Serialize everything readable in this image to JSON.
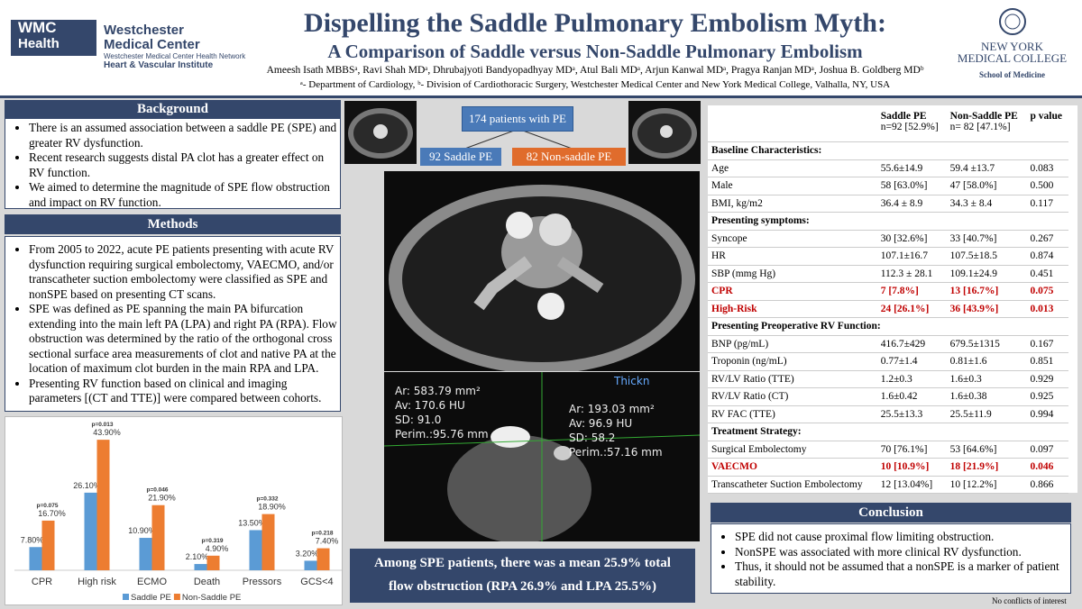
{
  "header": {
    "logo_top": "WMC",
    "logo_bottom": "Health",
    "org": "Westchester Medical Center",
    "network": "Westchester Medical Center Health Network",
    "institute": "Heart & Vascular Institute",
    "title": "Dispelling the Saddle Pulmonary Embolism Myth:",
    "subtitle": "A Comparison of Saddle versus Non-Saddle Pulmonary Embolism",
    "authors": "Ameesh Isath MBBSᵃ, Ravi Shah MDᵃ, Dhrubajyoti Bandyopadhyay MDᵃ, Atul Bali MDᵃ, Arjun Kanwal MDᵃ, Pragya Ranjan MDᵃ, Joshua B. Goldberg MDᵇ",
    "affiliations": "ᵃ- Department of Cardiology, ᵇ- Division of Cardiothoracic Surgery, Westchester Medical Center and New York Medical College, Valhalla, NY, USA",
    "college_line1": "NEW YORK",
    "college_line2": "MEDICAL COLLEGE",
    "college_school": "School of Medicine"
  },
  "background": {
    "title": "Background",
    "items": [
      "There is an assumed association between a saddle PE (SPE) and greater RV dysfunction.",
      "Recent research suggests distal PA clot has a greater effect on RV function.",
      "We aimed to determine the magnitude of SPE flow obstruction and impact on RV function."
    ]
  },
  "methods": {
    "title": "Methods",
    "items": [
      "From 2005 to 2022, acute PE patients presenting with acute RV dysfunction requiring surgical embolectomy, VAECMO, and/or transcatheter suction embolectomy were classified as SPE and nonSPE based on presenting CT scans.",
      "SPE was defined as PE spanning the main PA bifurcation extending into the main left PA (LPA) and right PA (RPA). Flow obstruction was determined by the ratio of the orthogonal cross sectional surface area measurements of clot and native PA at the location of maximum clot burden in the main RPA and LPA.",
      "Presenting RV function based on clinical and imaging parameters [(CT and TTE)] were compared between cohorts."
    ]
  },
  "chart_data": {
    "type": "bar",
    "categories": [
      "CPR",
      "High risk",
      "ECMO",
      "Death",
      "Pressors",
      "GCS<4"
    ],
    "series": [
      {
        "name": "Saddle PE",
        "color": "#5b9bd5",
        "values": [
          7.8,
          26.1,
          10.9,
          2.1,
          13.5,
          3.2
        ],
        "value_labels": [
          "7.80%",
          "26.10%",
          "10.90%",
          "2.10%",
          "13.50%",
          "3.20%"
        ]
      },
      {
        "name": "Non-Saddle PE",
        "color": "#ed7d31",
        "values": [
          16.7,
          43.9,
          21.9,
          4.9,
          18.9,
          7.4
        ],
        "value_labels": [
          "16.70%",
          "43.90%",
          "21.90%",
          "4.90%",
          "18.90%",
          "7.40%"
        ]
      }
    ],
    "annotations": [
      "p=0.075",
      "p=0.013",
      "p=0.046",
      "p=0.319",
      "p=0.332",
      "p=0.218"
    ],
    "ylim": [
      0,
      50
    ]
  },
  "flowchart": {
    "total": "174 patients with PE",
    "left": "92 Saddle PE",
    "right": "82 Non-saddle PE"
  },
  "ct_left": [
    "Ar: 583.79 mm²",
    "Av: 170.6 HU",
    "SD: 91.0",
    "Perim.:95.76 mm"
  ],
  "ct_right": [
    "Ar: 193.03 mm²",
    "Av: 96.9 HU",
    "SD: 58.2",
    "Perim.:57.16 mm"
  ],
  "ct_tag": "Thickn",
  "summary": "Among SPE patients, there was a mean 25.9% total flow obstruction (RPA 26.9% and LPA 25.5%)",
  "table": {
    "highlight_color": "#c00000",
    "header": [
      {
        "name": "Saddle PE",
        "sub": "n=92 [52.9%]"
      },
      {
        "name": "Non-Saddle PE",
        "sub": "n= 82 [47.1%]"
      },
      {
        "name": "p value"
      }
    ],
    "rows": [
      {
        "section": "Baseline Characteristics:"
      },
      {
        "cells": [
          "Age",
          "55.6±14.9",
          "59.4 ±13.7",
          "0.083"
        ]
      },
      {
        "cells": [
          "Male",
          "58 [63.0%]",
          "47 [58.0%]",
          "0.500"
        ]
      },
      {
        "cells": [
          "BMI, kg/m2",
          "36.4 ± 8.9",
          "34.3 ± 8.4",
          "0.117"
        ]
      },
      {
        "section": "Presenting symptoms:"
      },
      {
        "cells": [
          "Syncope",
          "30 [32.6%]",
          "33 [40.7%]",
          "0.267"
        ]
      },
      {
        "cells": [
          "HR",
          "107.1±16.7",
          "107.5±18.5",
          "0.874"
        ]
      },
      {
        "cells": [
          "SBP (mmg Hg)",
          "112.3 ± 28.1",
          "109.1±24.9",
          "0.451"
        ]
      },
      {
        "cells": [
          "CPR",
          "7 [7.8%]",
          "13 [16.7%]",
          "0.075"
        ],
        "highlight": true
      },
      {
        "cells": [
          "High-Risk",
          "24 [26.1%]",
          "36 [43.9%]",
          "0.013"
        ],
        "highlight": true
      },
      {
        "section": "Presenting Preoperative RV Function:"
      },
      {
        "cells": [
          "BNP (pg/mL)",
          "416.7±429",
          "679.5±1315",
          "0.167"
        ]
      },
      {
        "cells": [
          "Troponin (ng/mL)",
          "0.77±1.4",
          "0.81±1.6",
          "0.851"
        ]
      },
      {
        "cells": [
          "RV/LV Ratio (TTE)",
          "1.2±0.3",
          "1.6±0.3",
          "0.929"
        ]
      },
      {
        "cells": [
          "RV/LV Ratio (CT)",
          "1.6±0.42",
          "1.6±0.38",
          "0.925"
        ]
      },
      {
        "cells": [
          "RV FAC (TTE)",
          "25.5±13.3",
          "25.5±11.9",
          "0.994"
        ]
      },
      {
        "section": "Treatment Strategy:"
      },
      {
        "cells": [
          "Surgical Embolectomy",
          "70 [76.1%]",
          "53 [64.6%]",
          "0.097"
        ]
      },
      {
        "cells": [
          "VAECMO",
          "10 [10.9%]",
          "18 [21.9%]",
          "0.046"
        ],
        "highlight": true
      },
      {
        "cells": [
          "Transcatheter Suction Embolectomy",
          "12 [13.04%]",
          "10 [12.2%]",
          "0.866"
        ]
      }
    ]
  },
  "conclusion": {
    "title": "Conclusion",
    "items": [
      "SPE did not cause proximal flow limiting obstruction.",
      "NonSPE was associated with more clinical RV dysfunction.",
      "Thus, it should not be assumed that a nonSPE is a marker of patient stability."
    ]
  },
  "footer": "No conflicts of interest"
}
